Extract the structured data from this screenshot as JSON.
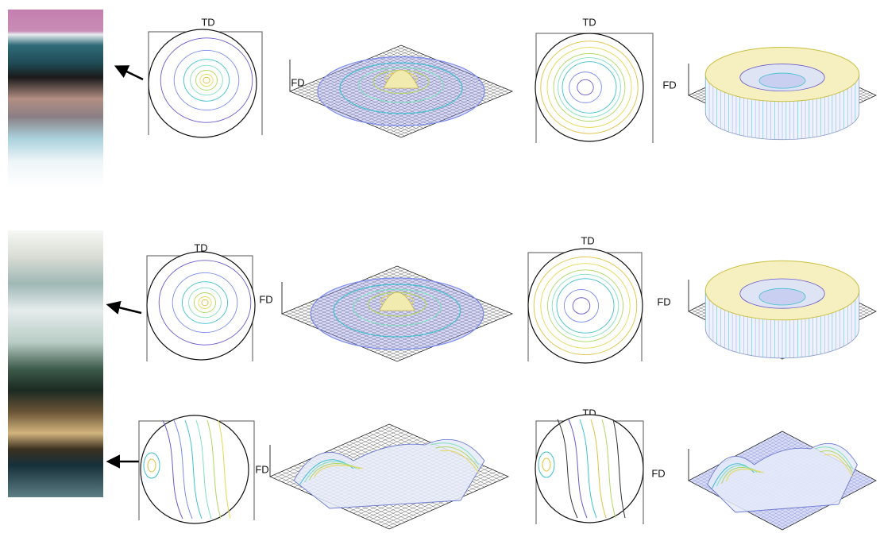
{
  "panels": [
    {
      "td": "TD",
      "fd": "FD"
    },
    {
      "td": "TD",
      "fd": "FD"
    },
    {
      "td": "TD",
      "fd": "FD"
    },
    {
      "td": "TD",
      "fd": "FD"
    },
    {
      "fd": "FD"
    },
    {
      "td": "TD",
      "fd": "FD"
    }
  ]
}
